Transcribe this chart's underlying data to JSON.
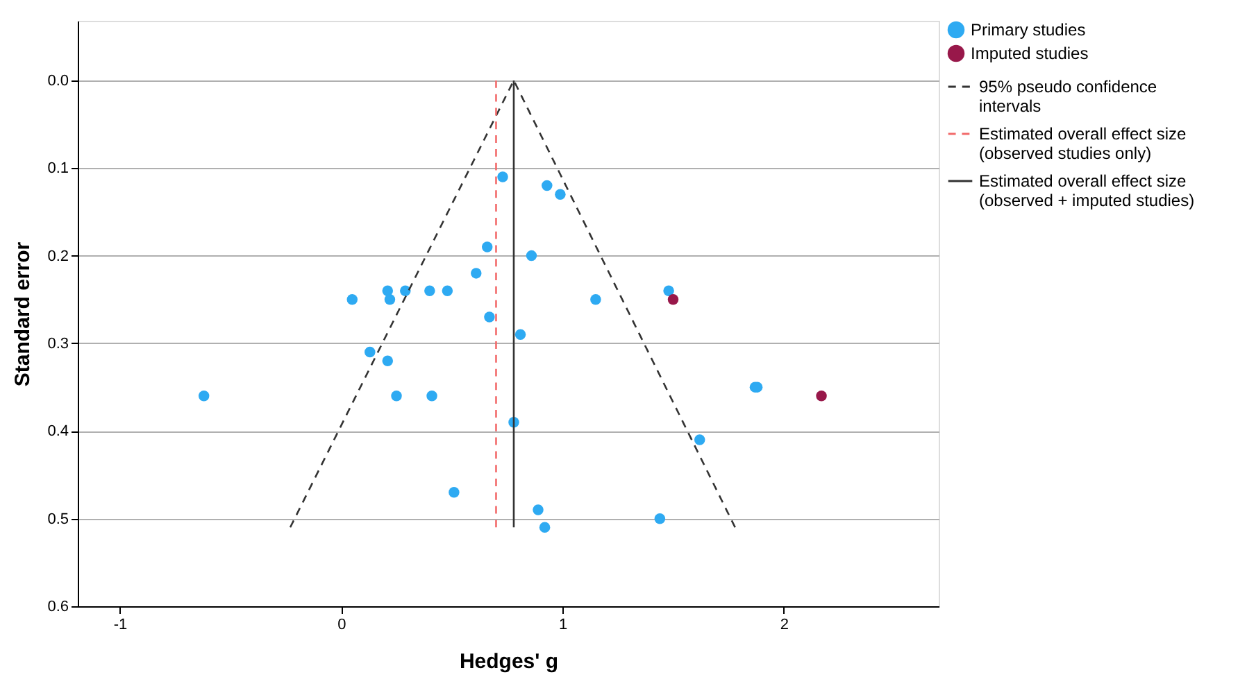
{
  "chart_data": {
    "type": "scatter",
    "xlabel": "Hedges' g",
    "ylabel": "Standard error",
    "xlim": [
      -1.19,
      2.7
    ],
    "ylim": [
      0.6,
      -0.068
    ],
    "xticks": [
      -1,
      0,
      1,
      2
    ],
    "yticks": [
      {
        "value": 0,
        "label": "0.0"
      },
      {
        "value": 0.1,
        "label": "0.1"
      },
      {
        "value": 0.2,
        "label": "0.2"
      },
      {
        "value": 0.3,
        "label": "0.3"
      },
      {
        "value": 0.4,
        "label": "0.4"
      },
      {
        "value": 0.5,
        "label": "0.5"
      },
      {
        "value": 0.6,
        "label": "0.6"
      }
    ],
    "grid": "y",
    "legend": "right",
    "series": [
      {
        "name": "Primary studies",
        "color": "#2eaaf2",
        "x": [
          -0.62,
          0.05,
          0.21,
          0.22,
          0.29,
          0.4,
          0.48,
          0.13,
          0.21,
          0.25,
          0.41,
          0.51,
          0.61,
          0.66,
          0.67,
          0.73,
          0.78,
          0.81,
          0.86,
          0.89,
          0.92,
          0.93,
          0.99,
          1.15,
          1.48,
          1.44,
          1.62,
          1.87,
          1.88
        ],
        "values": [
          0.36,
          0.25,
          0.24,
          0.25,
          0.24,
          0.24,
          0.24,
          0.31,
          0.32,
          0.36,
          0.36,
          0.47,
          0.22,
          0.19,
          0.27,
          0.11,
          0.39,
          0.29,
          0.2,
          0.49,
          0.51,
          0.12,
          0.13,
          0.25,
          0.24,
          0.5,
          0.41,
          0.35,
          0.35
        ]
      },
      {
        "name": "Imputed studies",
        "color": "#98184a",
        "x": [
          1.5,
          2.17
        ],
        "values": [
          0.25,
          0.36
        ]
      },
      {
        "name": "95% pseudo confidence intervals",
        "type": "line",
        "line_style": "dashed",
        "color": "#333333",
        "x": [
          -0.23,
          0.78,
          1.78
        ],
        "values": [
          0.51,
          0,
          0.51
        ]
      },
      {
        "name": "Estimated overall effect size (observed studies only)",
        "type": "line",
        "line_style": "dashed",
        "color": "#f26b6b",
        "x": [
          0.7,
          0.7
        ],
        "values": [
          0,
          0.51
        ]
      },
      {
        "name": "Estimated overall effect size (observed + imputed studies)",
        "type": "line",
        "line_style": "solid",
        "color": "#333333",
        "x": [
          0.78,
          0.78
        ],
        "values": [
          0,
          0.51
        ]
      }
    ]
  }
}
